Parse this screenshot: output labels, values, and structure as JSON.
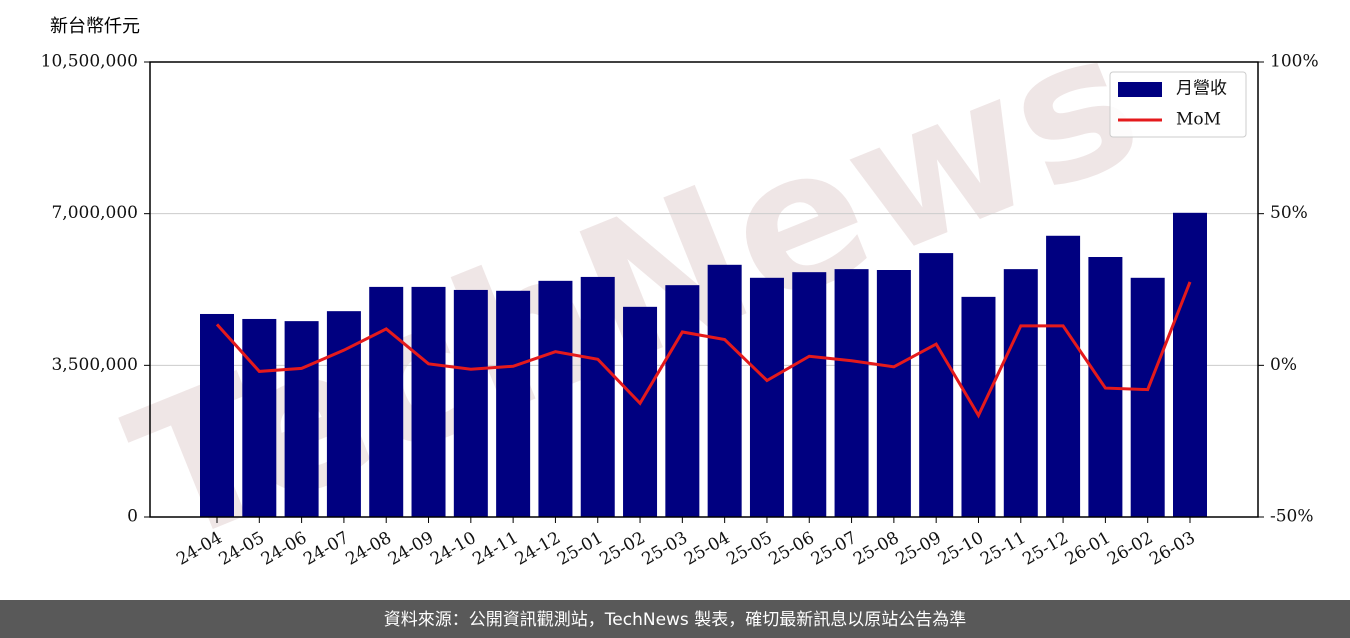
{
  "chart_data": {
    "type": "bar_line",
    "y_axis_label": "新台幣仟元",
    "watermark": "TechNews",
    "footer": "資料來源：公開資訊觀測站，TechNews 製表，確切最新訊息以原站公告為準",
    "categories": [
      "24-04",
      "24-05",
      "24-06",
      "24-07",
      "24-08",
      "24-09",
      "24-10",
      "24-11",
      "24-12",
      "25-01",
      "25-02",
      "25-03",
      "25-04",
      "25-05",
      "25-06",
      "25-07",
      "25-08",
      "25-09",
      "25-10",
      "25-11",
      "25-12",
      "26-01",
      "26-02",
      "26-03"
    ],
    "series": [
      {
        "name": "月營收",
        "type": "bar",
        "color": "#000080",
        "values": [
          4685000,
          4570000,
          4520000,
          4750000,
          5310000,
          5310000,
          5240000,
          5220000,
          5450000,
          5540000,
          4850000,
          5350000,
          5820000,
          5520000,
          5650000,
          5720000,
          5700000,
          6090000,
          5080000,
          5720000,
          6490000,
          6000000,
          5520000,
          7020000
        ]
      },
      {
        "name": "MoM",
        "type": "line",
        "axis": "y2",
        "color": "#e41a1c",
        "values": [
          13.5,
          -2,
          -1,
          5,
          12,
          0.5,
          -1.3,
          -0.3,
          4.5,
          2,
          -12.5,
          11,
          8.5,
          -5,
          3,
          1.5,
          -0.5,
          7,
          -16.5,
          13,
          13,
          -7.5,
          -8,
          27.5
        ]
      }
    ],
    "ylim": [
      0,
      10500000
    ],
    "yticks": [
      0,
      {
        "value": 3500000,
        "label": "3,500,000"
      },
      {
        "value": 7000000,
        "label": "7,000,000"
      },
      {
        "value": 10500000,
        "label": "10,500,000"
      }
    ],
    "y2lim": [
      -50,
      100
    ],
    "y2ticks": [
      {
        "value": -50,
        "label": "-50%"
      },
      {
        "value": 0,
        "label": "0%"
      },
      {
        "value": 50,
        "label": "50%"
      },
      {
        "value": 100,
        "label": "100%"
      }
    ],
    "grid": true,
    "legend": "upper right"
  }
}
